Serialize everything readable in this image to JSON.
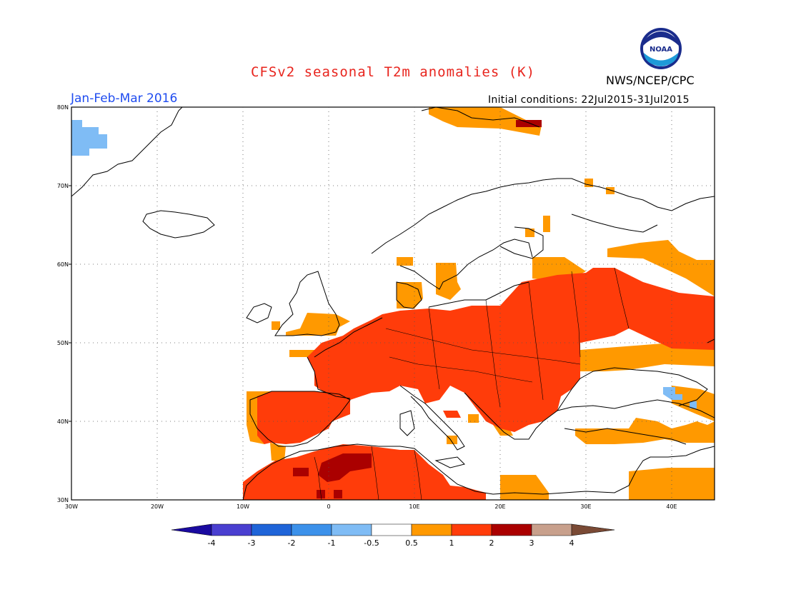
{
  "title": "CFSv2 seasonal T2m anomalies (K)",
  "org": "NWS/NCEP/CPC",
  "logo_text": "NOAA",
  "period": "Jan-Feb-Mar 2016",
  "initial_conditions": "Initial conditions: 22Jul2015-31Jul2015",
  "map": {
    "lon_range": [
      -30,
      45
    ],
    "lat_range": [
      30,
      80
    ],
    "lat_ticks": [
      "30N",
      "40N",
      "50N",
      "60N",
      "70N",
      "80N"
    ],
    "lon_ticks": [
      "30W",
      "20W",
      "10W",
      "0",
      "10E",
      "20E",
      "30E",
      "40E"
    ],
    "grid": true
  },
  "colorbar": {
    "labels": [
      "-4",
      "-3",
      "-2",
      "-1",
      "-0.5",
      "0.5",
      "1",
      "2",
      "3",
      "4"
    ],
    "colors": [
      "#1a0aa0",
      "#4a3fd0",
      "#1f64d8",
      "#3c91ea",
      "#7fbcf5",
      "#ffffff",
      "#ff9900",
      "#ff3c0a",
      "#aa0000",
      "#c8a08c",
      "#7a4a35"
    ]
  },
  "anomaly_regions": [
    {
      "category": "0.5 to 1",
      "color": "#ff9900",
      "areas": [
        "Ukraine/Black Sea north",
        "Anatolia",
        "Svalbard",
        "Baltic islands",
        "Ireland/UK south"
      ]
    },
    {
      "category": "1 to 2",
      "color": "#ff3c0a",
      "areas": [
        "Western & Central Europe",
        "Iberia",
        "Balkans",
        "Western Russia",
        "North Africa"
      ]
    },
    {
      "category": "2 to 3",
      "color": "#aa0000",
      "areas": [
        "Algeria",
        "Barents Sea coast"
      ]
    },
    {
      "category": "-1 to -0.5",
      "color": "#7fbcf5",
      "areas": [
        "Greenland east coast",
        "Caucasus"
      ]
    }
  ]
}
